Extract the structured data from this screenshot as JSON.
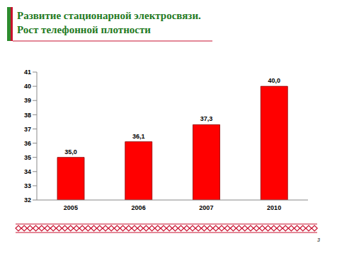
{
  "chart_data": {
    "type": "bar",
    "title": "Развитие стационарной электросвязи.\nРост телефонной плотности",
    "categories": [
      "2005",
      "2006",
      "2007",
      "2010"
    ],
    "values": [
      35.0,
      36.1,
      37.3,
      40.0
    ],
    "value_labels": [
      "35,0",
      "36,1",
      "37,3",
      "40,0"
    ],
    "color": "#ff0000",
    "ylim": [
      32,
      41
    ],
    "yticks": [
      32,
      33,
      34,
      35,
      36,
      37,
      38,
      39,
      40,
      41
    ],
    "grid": false,
    "data_labels": true
  },
  "page_number": "3"
}
